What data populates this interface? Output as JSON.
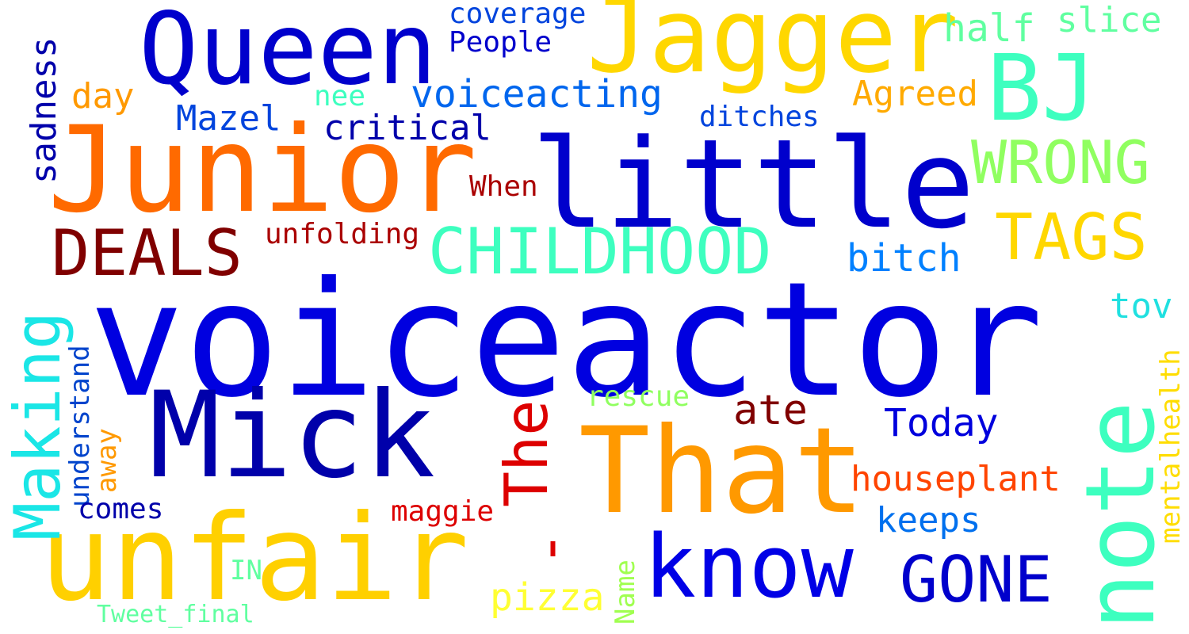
{
  "words": {
    "voiceactor": {
      "text": "voiceactor",
      "color": "#0000e0"
    },
    "little": {
      "text": "little",
      "color": "#0000cc"
    },
    "junior": {
      "text": "Junior",
      "color": "#ff6a00"
    },
    "queen": {
      "text": "Queen",
      "color": "#0000cc"
    },
    "jagger": {
      "text": "Jagger",
      "color": "#ffd700"
    },
    "bj": {
      "text": "BJ",
      "color": "#3dffbf"
    },
    "mick": {
      "text": "Mick",
      "color": "#0000aa"
    },
    "that": {
      "text": "That",
      "color": "#ff9900"
    },
    "unfair": {
      "text": "unfair",
      "color": "#ffd000"
    },
    "know": {
      "text": "know",
      "color": "#0000e6"
    },
    "note": {
      "text": "note",
      "color": "#3dffbf"
    },
    "childhood": {
      "text": "CHILDHOOD",
      "color": "#3dffbf"
    },
    "deals": {
      "text": "DEALS",
      "color": "#800000"
    },
    "wrong": {
      "text": "WRONG",
      "color": "#90ff60"
    },
    "tags": {
      "text": "TAGS",
      "color": "#ffd700"
    },
    "gone": {
      "text": "GONE",
      "color": "#0000cc"
    },
    "making": {
      "text": "Making",
      "color": "#1ae6e6"
    },
    "the": {
      "text": "The",
      "color": "#dd0000"
    },
    "dash": {
      "text": "-",
      "color": "#dd0000"
    },
    "voiceacting": {
      "text": "voiceacting",
      "color": "#0066ee"
    },
    "critical": {
      "text": "critical",
      "color": "#0000aa"
    },
    "mazel": {
      "text": "Mazel",
      "color": "#0044dd"
    },
    "bitch": {
      "text": "bitch",
      "color": "#0080ff"
    },
    "agreed": {
      "text": "Agreed",
      "color": "#ffaa00"
    },
    "half": {
      "text": "half",
      "color": "#60ffa0"
    },
    "slice": {
      "text": "slice",
      "color": "#60ffa0"
    },
    "coverage": {
      "text": "coverage",
      "color": "#0044dd"
    },
    "people": {
      "text": "People",
      "color": "#0000cc"
    },
    "day": {
      "text": "day",
      "color": "#ff9900"
    },
    "nee": {
      "text": "nee",
      "color": "#3dffbf"
    },
    "ditches": {
      "text": "ditches",
      "color": "#0044dd"
    },
    "when": {
      "text": "When",
      "color": "#aa0000"
    },
    "unfolding": {
      "text": "unfolding",
      "color": "#aa0000"
    },
    "sadness": {
      "text": "sadness",
      "color": "#0000aa"
    },
    "ate": {
      "text": "ate",
      "color": "#800000"
    },
    "today": {
      "text": "Today",
      "color": "#0000dd"
    },
    "houseplant": {
      "text": "houseplant",
      "color": "#ff4400"
    },
    "keeps": {
      "text": "keeps",
      "color": "#0070ee"
    },
    "tov": {
      "text": "tov",
      "color": "#20e0e0"
    },
    "mentalhealth": {
      "text": "mentalhealth",
      "color": "#ffdd00"
    },
    "rescue": {
      "text": "rescue",
      "color": "#90ff60"
    },
    "understand": {
      "text": "understand",
      "color": "#0044cc"
    },
    "away": {
      "text": "away",
      "color": "#ff9900"
    },
    "comes": {
      "text": "comes",
      "color": "#0000aa"
    },
    "maggie": {
      "text": "maggie",
      "color": "#dd0000"
    },
    "pizza": {
      "text": "pizza",
      "color": "#ffff33"
    },
    "name": {
      "text": "Name",
      "color": "#a0ff50"
    },
    "in": {
      "text": "IN",
      "color": "#60ffa0"
    },
    "tweet_final": {
      "text": "Tweet_final",
      "color": "#60ffa0"
    }
  }
}
